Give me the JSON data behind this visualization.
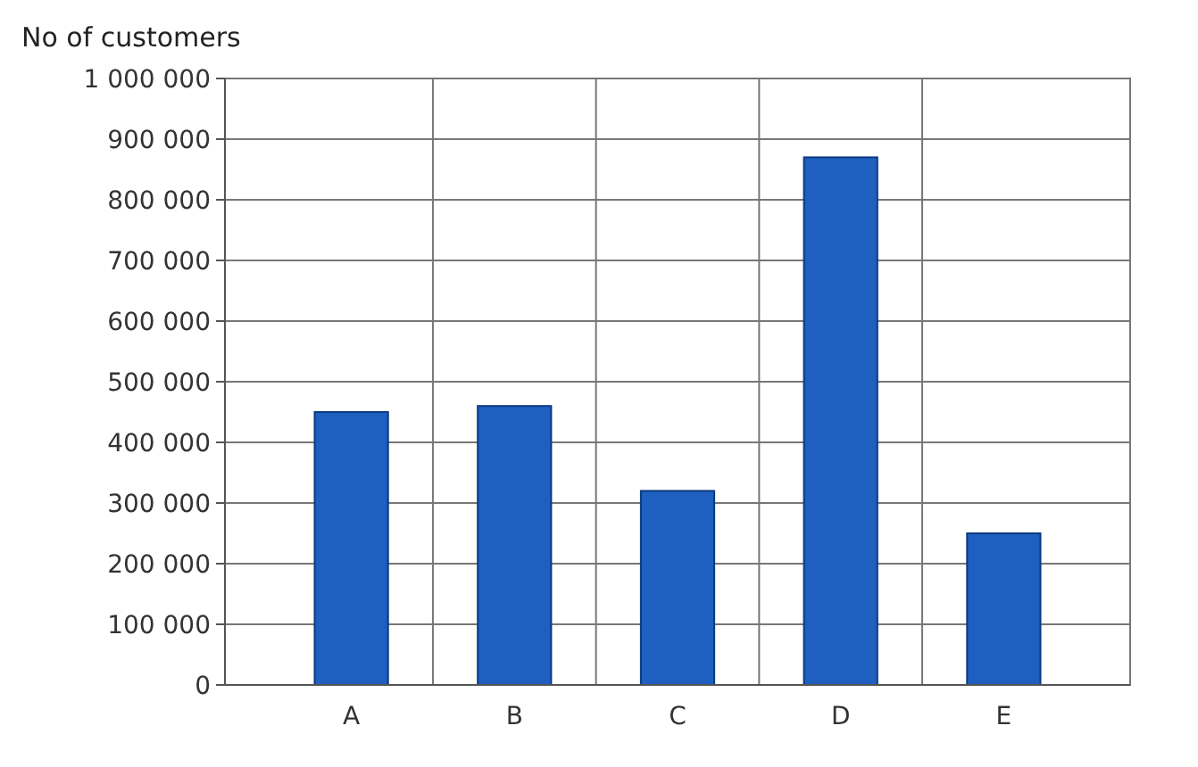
{
  "chart_data": {
    "type": "bar",
    "ylabel": "No of customers",
    "categories": [
      "A",
      "B",
      "C",
      "D",
      "E"
    ],
    "values": [
      450000,
      460000,
      320000,
      870000,
      250000
    ],
    "color": "#1f5fbf",
    "ylim": [
      0,
      1000000
    ],
    "yticks": [
      {
        "value": 0,
        "label": "0"
      },
      {
        "value": 100000,
        "label": "100 000"
      },
      {
        "value": 200000,
        "label": "200 000"
      },
      {
        "value": 300000,
        "label": "300 000"
      },
      {
        "value": 400000,
        "label": "400 000"
      },
      {
        "value": 500000,
        "label": "500 000"
      },
      {
        "value": 600000,
        "label": "600 000"
      },
      {
        "value": 700000,
        "label": "700 000"
      },
      {
        "value": 800000,
        "label": "800 000"
      },
      {
        "value": 900000,
        "label": "900 000"
      },
      {
        "value": 1000000,
        "label": "1 000 000"
      }
    ],
    "grid": true
  }
}
